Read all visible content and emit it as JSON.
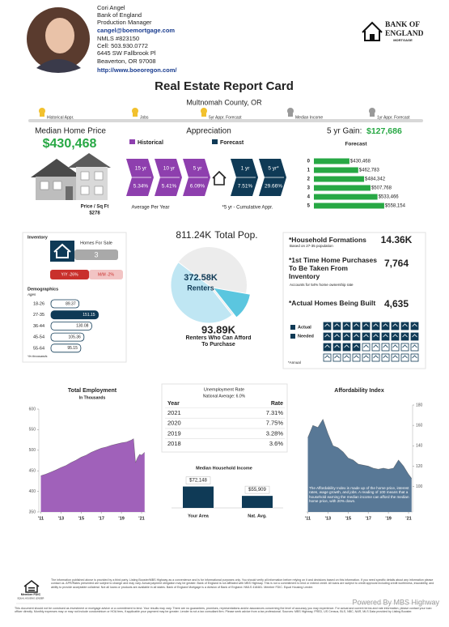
{
  "agent": {
    "name": "Cori Angel",
    "org": "Bank of England",
    "title": "Production Manager",
    "email": "cangel@boemortgage.com",
    "nmls": "NMLS #823150",
    "cell": "Cell: 503.930.0772",
    "address1": "6445 SW Fallbrook Pl",
    "address2": "Beaverton, OR 97008",
    "url": "http://www.boeoregon.com/"
  },
  "logo": {
    "line1": "BANK OF",
    "line2": "ENGLAND",
    "line3": "MORTGAGE"
  },
  "header": {
    "title": "Real Estate Report Card",
    "subtitle": "Multnomah County, OR"
  },
  "indicators": [
    {
      "label": "Historical Appr.",
      "color": "#f2c12e"
    },
    {
      "label": "Jobs",
      "color": "#f2c12e"
    },
    {
      "label": "5yr Appr. Forecast",
      "color": "#f2c12e"
    },
    {
      "label": "Median Income",
      "color": "#9a9a9a"
    },
    {
      "label": "1yr Appr. Forecast",
      "color": "#9a9a9a"
    }
  ],
  "median_price": {
    "label": "Median Home Price",
    "value": "$430,468",
    "sqft_label": "Price / Sq Ft",
    "sqft_value": "$278"
  },
  "appreciation": {
    "title": "Appreciation",
    "legend": [
      "Historical",
      "Forecast"
    ],
    "colors": [
      "#8e3fae",
      "#0f3a56"
    ],
    "historical": [
      {
        "period": "15 yr",
        "rate": "5.34%"
      },
      {
        "period": "10 yr",
        "rate": "5.41%"
      },
      {
        "period": "5 yr",
        "rate": "6.09%"
      }
    ],
    "forecast": [
      {
        "period": "1 yr",
        "rate": "7.51%"
      },
      {
        "period": "5 yr*",
        "rate": "29.66%"
      }
    ],
    "note_left": "Average Per Year",
    "note_right": "*5 yr - Cumulative Appr."
  },
  "gain": {
    "label": "5 yr Gain:",
    "value": "$127,686"
  },
  "forecast_chart": {
    "type": "bar",
    "title": "Forecast",
    "categories": [
      "0",
      "1",
      "2",
      "3",
      "4",
      "5"
    ],
    "values": [
      430468,
      462783,
      484342,
      507768,
      533466,
      558154
    ],
    "value_labels": [
      "$430,468",
      "$462,783",
      "$484,342",
      "$507,768",
      "$533,466",
      "$558,154"
    ],
    "color": "#27a844",
    "xlim": [
      300000,
      600000
    ]
  },
  "inventory": {
    "title": "Inventory",
    "homes_label": "Homes For Sale",
    "homes_value": "3",
    "yy": "Y/Y -26%",
    "mm": "M/M -2%"
  },
  "demographics": {
    "type": "bar",
    "title": "Demographics",
    "subtitle": "Ages",
    "categories": [
      "18-26",
      "27-35",
      "36-44",
      "45-54",
      "55-64"
    ],
    "values": [
      89.37,
      151.15,
      130.08,
      105.36,
      95.15
    ],
    "colors": [
      "#ffffff",
      "#0f3a56",
      "#ffffff",
      "#ffffff",
      "#ffffff"
    ],
    "xlim": [
      0,
      160
    ],
    "note": "*In thousands"
  },
  "population": {
    "type": "pie",
    "categories": [
      "Total Pop.",
      "Renters",
      "Renters Who Can Afford To Purchase"
    ],
    "values": [
      811.24,
      372.58,
      93.89
    ],
    "value_labels": [
      "811.24K",
      "372.58K",
      "93.89K"
    ],
    "colors": [
      "#ececec",
      "#bfe6f3",
      "#5bc6df"
    ]
  },
  "housing": {
    "items": [
      {
        "label": "*Household Formations",
        "note": "Based on 27-35 population",
        "value": "14.36K"
      },
      {
        "label": "*1st Time Home Purchases To Be Taken From Inventory",
        "note": "Accounts for 54% home ownership rate",
        "value": "7,764"
      },
      {
        "label": "*Actual Homes Being Built",
        "value": "4,635"
      }
    ],
    "legend": [
      "Actual",
      "Needed"
    ],
    "footnote": "*Annual"
  },
  "employment": {
    "type": "area",
    "title": "Total Employment",
    "subtitle": "In Thousands",
    "color": "#9b59b6",
    "x": [
      2011,
      2011.5,
      2012,
      2012.5,
      2013,
      2013.5,
      2014,
      2014.5,
      2015,
      2015.5,
      2016,
      2016.5,
      2017,
      2017.5,
      2018,
      2018.5,
      2019,
      2019.5,
      2020,
      2020.2,
      2020.4,
      2020.6,
      2020.8,
      2021,
      2021.3
    ],
    "values": [
      438,
      442,
      447,
      452,
      458,
      463,
      470,
      476,
      483,
      488,
      495,
      500,
      505,
      508,
      512,
      515,
      518,
      520,
      525,
      528,
      470,
      482,
      490,
      488,
      495
    ],
    "xlim": [
      2010.8,
      2021.4
    ],
    "ylim": [
      350,
      600
    ],
    "yticks": [
      350,
      400,
      450,
      500,
      550,
      600
    ],
    "xticks": [
      {
        "value": 2011,
        "label": "'11"
      },
      {
        "value": 2013,
        "label": "'13"
      },
      {
        "value": 2015,
        "label": "'15"
      },
      {
        "value": 2017,
        "label": "'17"
      },
      {
        "value": 2019,
        "label": "'19"
      },
      {
        "value": 2021,
        "label": "'21"
      }
    ]
  },
  "unemployment": {
    "title": "Unemployment Rate",
    "subtitle": "National Average: 6.0%",
    "headers": [
      "Year",
      "Rate"
    ],
    "rows": [
      [
        "2021",
        "7.31%"
      ],
      [
        "2020",
        "7.75%"
      ],
      [
        "2019",
        "3.28%"
      ],
      [
        "2018",
        "3.6%"
      ]
    ]
  },
  "income": {
    "type": "bar",
    "title": "Median Household Income",
    "categories": [
      "Your Area",
      "Nat. Avg."
    ],
    "values": [
      72148,
      55909
    ],
    "value_labels": [
      "$72,148",
      "$55,909"
    ],
    "color": "#0f3a56",
    "ylim": [
      35000,
      80000
    ]
  },
  "affordability": {
    "type": "area",
    "title": "Affordability Index",
    "color": "#4f7190",
    "x": [
      2011,
      2011.5,
      2012,
      2012.5,
      2013,
      2013.5,
      2014,
      2014.5,
      2015,
      2015.5,
      2016,
      2016.5,
      2017,
      2017.5,
      2018,
      2018.5,
      2019,
      2019.5,
      2020,
      2020.5,
      2021,
      2021.3
    ],
    "values": [
      148,
      160,
      158,
      166,
      152,
      140,
      138,
      134,
      128,
      126,
      122,
      121,
      120,
      118,
      117,
      118,
      117,
      118,
      126,
      120,
      112,
      108
    ],
    "xlim": [
      2010.8,
      2021.4
    ],
    "ylim": [
      75,
      180
    ],
    "yticks": [
      100,
      120,
      140,
      160,
      180
    ],
    "xticks": [
      {
        "value": 2011,
        "label": "'11"
      },
      {
        "value": 2013,
        "label": "'13"
      },
      {
        "value": 2015,
        "label": "'15"
      },
      {
        "value": 2017,
        "label": "'17"
      },
      {
        "value": 2019,
        "label": "'19"
      },
      {
        "value": 2021,
        "label": "'21"
      }
    ],
    "note": "The Affordability Index is made up of the home price, interest rates, wage growth, and jobs. A reading of 100 means that a household earning the median income can afford the median home price, with 20% down."
  },
  "footer": {
    "fdic": "Member FDIC",
    "equal_housing": "EQUAL HOUSING LENDER",
    "disclaimer1": "The information published above is provided by a third party. Listing Booster/MBS Highway as a convenience and is for informational purposes only. You should verify all information before relying on it and decisions based on this information. If you need specific details about any information please contact us. APR/Rates presented are subject to change and may vary. Actual payment obligation may be greater. Bank of England is not affiliated with MBS Highway. This is not a commitment to lend or extend credit. All loans are subject to credit approval including credit worthiness, insurability, and ability to provide acceptable collateral. Not all loans or products are available in all states. Bank of England Mortgage is a division of Bank of England. NMLS 418481. Member FDIC. Equal Housing Lender.",
    "powered": "Powered By MBS Highway",
    "disclaimer2": "This document should not be construed as investment or mortgage advice or a commitment to lend. Your results may vary. There are no guarantees, promises, representations and/or assurances concerning the level of accuracy you may experience. For actual and current terms and rate information, please contact your loan officer directly. Monthly expenses may or may not include condominium or HOA fees, if applicable your payment may be greater. Lender is not a tax consultant firm. Please seek advice from a tax professional. Sources: MBS Highway, FRED, US Census, BLS, NBC, NAR, MLS Data provided by Listing Booster."
  }
}
